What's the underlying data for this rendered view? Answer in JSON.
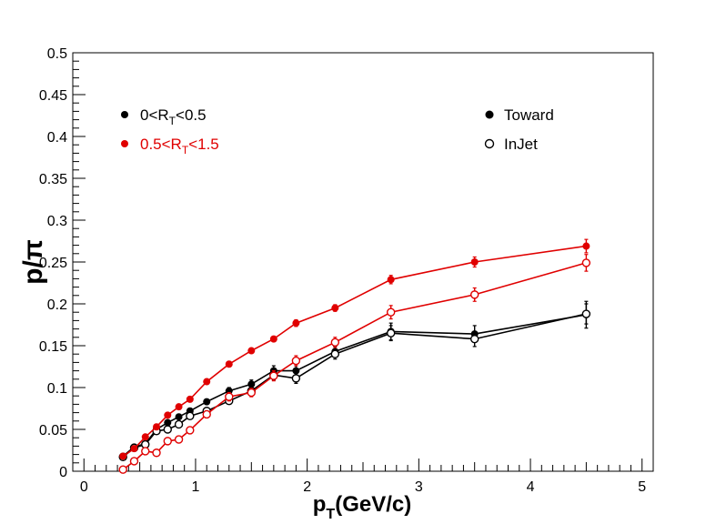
{
  "chart_data": {
    "type": "scatter",
    "title": "",
    "xlabel": {
      "main": "p",
      "sub": "T",
      "rest": "(GeV/c)"
    },
    "ylabel": "p/π",
    "xlim": [
      -0.1,
      5.1
    ],
    "ylim": [
      0,
      0.5
    ],
    "x_ticks": [
      "0",
      "1",
      "2",
      "3",
      "4",
      "5"
    ],
    "y_ticks": [
      "0",
      "0.05",
      "0.1",
      "0.15",
      "0.2",
      "0.25",
      "0.3",
      "0.35",
      "0.4",
      "0.45",
      "0.5"
    ],
    "legend_rt": [
      {
        "prefix": "0<R",
        "sub": "T",
        "suffix": "<0.5",
        "color": "#000000"
      },
      {
        "prefix": "0.5<R",
        "sub": "T",
        "suffix": "<1.5",
        "color": "#e00000"
      }
    ],
    "legend_marker": [
      {
        "label": "Toward",
        "marker": "filled"
      },
      {
        "label": "InJet",
        "marker": "open"
      }
    ],
    "series": [
      {
        "color": "#000000",
        "marker": "filled",
        "x": [
          0.35,
          0.45,
          0.55,
          0.65,
          0.75,
          0.85,
          0.95,
          1.1,
          1.3,
          1.5,
          1.7,
          1.9,
          2.25,
          2.75,
          3.5,
          4.5
        ],
        "y": [
          0.018,
          0.029,
          0.033,
          0.05,
          0.058,
          0.065,
          0.072,
          0.083,
          0.096,
          0.104,
          0.12,
          0.12,
          0.143,
          0.167,
          0.164,
          0.187
        ],
        "err": [
          0.002,
          0.002,
          0.002,
          0.003,
          0.003,
          0.003,
          0.003,
          0.003,
          0.004,
          0.005,
          0.006,
          0.006,
          0.006,
          0.01,
          0.01,
          0.016
        ]
      },
      {
        "color": "#000000",
        "marker": "open",
        "x": [
          0.35,
          0.45,
          0.55,
          0.65,
          0.75,
          0.85,
          0.95,
          1.1,
          1.3,
          1.5,
          1.7,
          1.9,
          2.25,
          2.75,
          3.5,
          4.5
        ],
        "y": [
          0.017,
          0.028,
          0.032,
          0.048,
          0.05,
          0.056,
          0.066,
          0.072,
          0.084,
          0.096,
          0.115,
          0.111,
          0.14,
          0.165,
          0.158,
          0.188
        ],
        "err": [
          0.002,
          0.002,
          0.002,
          0.003,
          0.003,
          0.003,
          0.003,
          0.003,
          0.004,
          0.005,
          0.006,
          0.006,
          0.006,
          0.009,
          0.009,
          0.012
        ]
      },
      {
        "color": "#e00000",
        "marker": "filled",
        "x": [
          0.35,
          0.45,
          0.55,
          0.65,
          0.75,
          0.85,
          0.95,
          1.1,
          1.3,
          1.5,
          1.7,
          1.9,
          2.25,
          2.75,
          3.5,
          4.5
        ],
        "y": [
          0.018,
          0.027,
          0.041,
          0.053,
          0.067,
          0.077,
          0.086,
          0.107,
          0.128,
          0.144,
          0.158,
          0.177,
          0.195,
          0.229,
          0.25,
          0.269
        ],
        "err": [
          0.002,
          0.002,
          0.002,
          0.003,
          0.003,
          0.003,
          0.003,
          0.003,
          0.003,
          0.003,
          0.003,
          0.004,
          0.004,
          0.005,
          0.006,
          0.008
        ]
      },
      {
        "color": "#e00000",
        "marker": "open",
        "x": [
          0.35,
          0.45,
          0.55,
          0.65,
          0.75,
          0.85,
          0.95,
          1.1,
          1.3,
          1.5,
          1.7,
          1.9,
          2.25,
          2.75,
          3.5,
          4.5
        ],
        "y": [
          0.002,
          0.012,
          0.024,
          0.022,
          0.036,
          0.038,
          0.049,
          0.068,
          0.089,
          0.094,
          0.114,
          0.132,
          0.154,
          0.19,
          0.211,
          0.249
        ],
        "err": [
          0.002,
          0.003,
          0.003,
          0.003,
          0.003,
          0.004,
          0.004,
          0.004,
          0.005,
          0.005,
          0.006,
          0.006,
          0.006,
          0.008,
          0.008,
          0.01
        ]
      }
    ]
  }
}
